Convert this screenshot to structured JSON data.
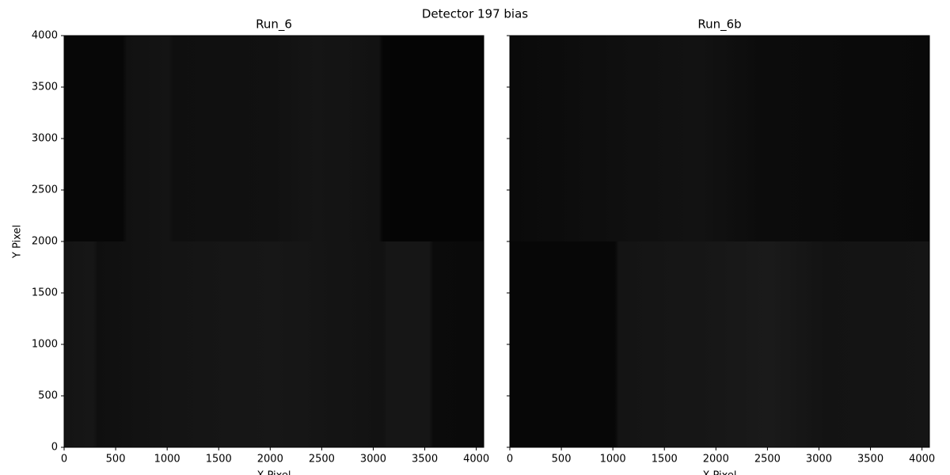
{
  "title": "Detector 197 bias",
  "chart_data": [
    {
      "type": "image",
      "title": "Run_6",
      "xlabel": "X Pixel",
      "ylabel": "Y Pixel",
      "xlim": [
        0,
        4072
      ],
      "ylim": [
        0,
        4000
      ],
      "xticks": [
        0,
        500,
        1000,
        1500,
        2000,
        2500,
        3000,
        3500,
        4000
      ],
      "yticks": [
        0,
        500,
        1000,
        1500,
        2000,
        2500,
        3000,
        3500,
        4000
      ],
      "show_ytick_labels": true
    },
    {
      "type": "image",
      "title": "Run_6b",
      "xlabel": "X Pixel",
      "xlim": [
        0,
        4072
      ],
      "ylim": [
        0,
        4000
      ],
      "xticks": [
        0,
        500,
        1000,
        1500,
        2000,
        2500,
        3000,
        3500,
        4000
      ],
      "yticks": [
        0,
        500,
        1000,
        1500,
        2000,
        2500,
        3000,
        3500,
        4000
      ],
      "show_ytick_labels": false
    }
  ]
}
